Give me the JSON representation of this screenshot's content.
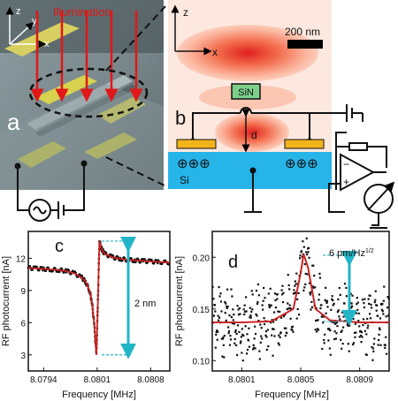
{
  "panel_a": {
    "label": "a",
    "illumination_label": "Illumination",
    "axes": {
      "x": "x",
      "y": "y",
      "z": "z"
    }
  },
  "panel_b": {
    "label": "b",
    "axes": {
      "x": "x",
      "z": "z"
    },
    "scale_bar": "200 nm",
    "beam_label": "SiN",
    "gap_label": "d",
    "substrate_label": "Si",
    "charge_symbol": "⊕"
  },
  "chart_data": [
    {
      "type": "line",
      "panel": "c",
      "xlabel": "Frequency [MHz]",
      "ylabel": "RF photocurrent [nA]",
      "xlim": [
        8.0792,
        8.08105
      ],
      "ylim": [
        1.5,
        14.5
      ],
      "x_ticks": [
        "8.0794",
        "8.0801",
        "8.0808"
      ],
      "x_tick_values": [
        8.0794,
        8.0801,
        8.0808
      ],
      "y_ticks": [
        "3",
        "6",
        "9",
        "12"
      ],
      "y_tick_values": [
        3,
        6,
        9,
        12
      ],
      "annotation": "2 nm",
      "annotation_range": [
        3,
        13.6
      ],
      "series": [
        {
          "style": "data-points",
          "color": "#111111",
          "x": [
            8.0792,
            8.0793,
            8.0794,
            8.0795,
            8.0796,
            8.0797,
            8.0798,
            8.0799,
            8.07995,
            8.08,
            8.08003,
            8.08006,
            8.08009,
            8.08011,
            8.08013,
            8.08015,
            8.08017,
            8.0802,
            8.0803,
            8.0804,
            8.0805,
            8.0806,
            8.0807,
            8.0808,
            8.0809,
            8.08105
          ],
          "y": [
            11.1,
            11.05,
            11.0,
            10.95,
            10.9,
            10.8,
            10.6,
            10.2,
            9.8,
            9.0,
            8.0,
            6.0,
            3.0,
            8.0,
            13.6,
            13.0,
            12.7,
            12.4,
            12.1,
            11.95,
            11.85,
            11.8,
            11.75,
            11.7,
            11.65,
            11.6
          ]
        },
        {
          "style": "fit-line",
          "color": "#cc2222",
          "x": [
            8.0792,
            8.0793,
            8.0794,
            8.0795,
            8.0796,
            8.0797,
            8.0798,
            8.0799,
            8.07995,
            8.08,
            8.08003,
            8.08006,
            8.08009,
            8.08011,
            8.08013,
            8.08015,
            8.08017,
            8.0802,
            8.0803,
            8.0804,
            8.0805,
            8.0806,
            8.0807,
            8.0808,
            8.0809,
            8.08105
          ],
          "y": [
            11.1,
            11.05,
            11.0,
            10.95,
            10.9,
            10.8,
            10.6,
            10.2,
            9.8,
            9.0,
            8.0,
            6.0,
            3.0,
            8.0,
            13.6,
            13.0,
            12.7,
            12.4,
            12.1,
            11.95,
            11.85,
            11.8,
            11.75,
            11.7,
            11.65,
            11.6
          ]
        }
      ]
    },
    {
      "type": "scatter",
      "panel": "d",
      "xlabel": "Frequency [MHz]",
      "ylabel": "RF photocurrent [nA]",
      "xlim": [
        8.0799,
        8.0811
      ],
      "ylim": [
        0.09,
        0.225
      ],
      "x_ticks": [
        "8.0801",
        "8.0805",
        "8.0809"
      ],
      "x_tick_values": [
        8.0801,
        8.0805,
        8.0809
      ],
      "y_ticks": [
        "0.10",
        "0.15",
        "0.20"
      ],
      "y_tick_values": [
        0.1,
        0.15,
        0.2
      ],
      "annotation": "6 pm/Hz",
      "annotation_exponent": "1/2",
      "annotation_range": [
        0.138,
        0.202
      ],
      "series": [
        {
          "style": "fit-line",
          "color": "#cc2222",
          "x": [
            8.0799,
            8.0801,
            8.0803,
            8.08045,
            8.0805,
            8.08052,
            8.08055,
            8.0806,
            8.0807,
            8.0809,
            8.0811
          ],
          "y": [
            0.137,
            0.137,
            0.138,
            0.15,
            0.185,
            0.203,
            0.19,
            0.15,
            0.139,
            0.137,
            0.137
          ]
        }
      ]
    }
  ]
}
